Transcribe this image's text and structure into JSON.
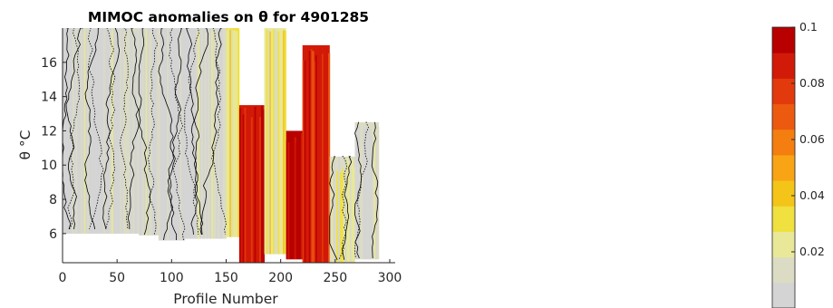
{
  "chart_data": {
    "type": "heatmap",
    "title": "MIMOC anomalies on θ  for 4901285",
    "xlabel": "Profile Number",
    "ylabel": "θ °C",
    "xlim": [
      0,
      305
    ],
    "ylim": [
      4.3,
      18.0
    ],
    "xticks": [
      0,
      50,
      100,
      150,
      200,
      250,
      300
    ],
    "yticks": [
      6,
      8,
      10,
      12,
      14,
      16
    ],
    "grid": false,
    "colorbar": {
      "range": [
        0,
        0.1
      ],
      "ticks": [
        0.02,
        0.04,
        0.06,
        0.08,
        0.1
      ],
      "tick_labels": [
        "0.02",
        "0.04",
        "0.06",
        "0.08",
        "0.1"
      ],
      "colors": [
        "#d4d4d4",
        "#dcdcc4",
        "#e8e898",
        "#f0e040",
        "#f4c418",
        "#f8a414",
        "#f47e10",
        "#ec5a10",
        "#e23a0c",
        "#d21a08",
        "#b80000"
      ],
      "location": "right"
    },
    "profiles": [
      {
        "x_range": [
          0,
          60
        ],
        "theta_range": [
          6.0,
          18.0
        ],
        "anomaly": 0.005
      },
      {
        "x_range": [
          60,
          70
        ],
        "theta_range": [
          6.0,
          18.0
        ],
        "anomaly": 0.012
      },
      {
        "x_range": [
          70,
          88
        ],
        "theta_range": [
          5.9,
          18.0
        ],
        "anomaly": 0.008
      },
      {
        "x_range": [
          88,
          112
        ],
        "theta_range": [
          5.6,
          18.0
        ],
        "anomaly": 0.003
      },
      {
        "x_range": [
          112,
          150
        ],
        "theta_range": [
          5.7,
          18.0
        ],
        "anomaly": 0.006
      },
      {
        "x_range": [
          150,
          162
        ],
        "theta_range": [
          5.8,
          18.0
        ],
        "anomaly": 0.03
      },
      {
        "x_range": [
          162,
          185
        ],
        "theta_range": [
          4.3,
          13.5
        ],
        "anomaly": 0.09
      },
      {
        "x_range": [
          185,
          205
        ],
        "theta_range": [
          4.8,
          18.0
        ],
        "anomaly": 0.025
      },
      {
        "x_range": [
          205,
          220
        ],
        "theta_range": [
          4.5,
          12.0
        ],
        "anomaly": 0.1
      },
      {
        "x_range": [
          220,
          245
        ],
        "theta_range": [
          4.3,
          17.0
        ],
        "anomaly": 0.085
      },
      {
        "x_range": [
          245,
          268
        ],
        "theta_range": [
          4.3,
          10.5
        ],
        "anomaly": 0.018
      },
      {
        "x_range": [
          268,
          290
        ],
        "theta_range": [
          4.5,
          12.5
        ],
        "anomaly": 0.012
      }
    ]
  }
}
